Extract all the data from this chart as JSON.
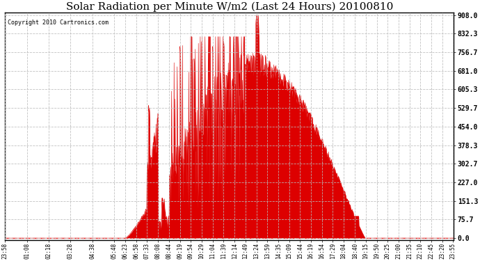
{
  "title": "Solar Radiation per Minute W/m2 (Last 24 Hours) 20100810",
  "copyright_text": "Copyright 2010 Cartronics.com",
  "yticks": [
    0.0,
    75.7,
    151.3,
    227.0,
    302.7,
    378.3,
    454.0,
    529.7,
    605.3,
    681.0,
    756.7,
    832.3,
    908.0
  ],
  "ymax": 908.0,
  "ymin": 0.0,
  "fill_color": "#dd0000",
  "line_color": "#dd0000",
  "bg_color": "#ffffff",
  "grid_color": "#bbbbbb",
  "dashed_line_color": "#ff0000",
  "title_fontsize": 11,
  "copyright_fontsize": 6,
  "tick_label_fontsize": 6.5,
  "x_tick_labels": [
    "23:58",
    "01:08",
    "02:18",
    "03:28",
    "04:38",
    "05:48",
    "06:23",
    "06:58",
    "07:33",
    "08:08",
    "08:44",
    "09:19",
    "09:54",
    "10:29",
    "11:04",
    "11:39",
    "12:14",
    "12:49",
    "13:24",
    "13:59",
    "14:35",
    "15:09",
    "15:44",
    "16:19",
    "16:54",
    "17:29",
    "18:04",
    "18:40",
    "19:15",
    "19:50",
    "20:25",
    "21:00",
    "21:35",
    "22:10",
    "22:45",
    "23:20",
    "23:55"
  ],
  "num_points": 1440
}
